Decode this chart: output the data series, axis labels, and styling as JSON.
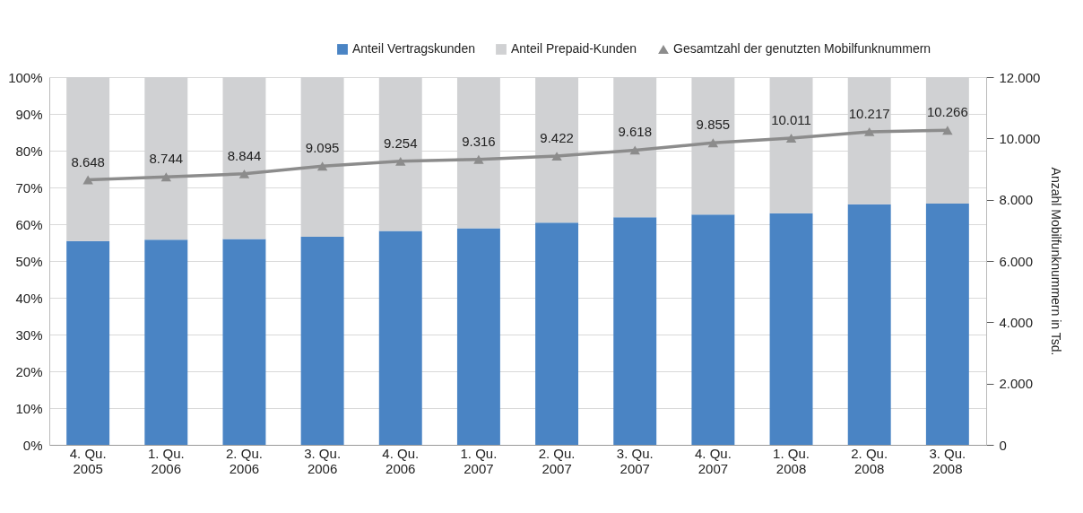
{
  "chart_data": {
    "type": "bar",
    "stacked": true,
    "categories": [
      "4. Qu. 2005",
      "1. Qu. 2006",
      "2. Qu. 2006",
      "3. Qu. 2006",
      "4. Qu. 2006",
      "1. Qu. 2007",
      "2. Qu. 2007",
      "3. Qu. 2007",
      "4. Qu. 2007",
      "1. Qu. 2008",
      "2. Qu. 2008",
      "3. Qu. 2008"
    ],
    "series": [
      {
        "name": "Anteil Vertragskunden",
        "color": "#4a84c4",
        "values": [
          55.4,
          55.8,
          56.0,
          56.6,
          58.2,
          58.9,
          60.4,
          61.9,
          62.6,
          63.0,
          65.4,
          65.6
        ]
      },
      {
        "name": "Anteil Prepaid-Kunden",
        "color": "#d0d1d3",
        "values": [
          44.6,
          44.2,
          44.0,
          43.4,
          41.8,
          41.1,
          39.6,
          38.1,
          37.4,
          37.0,
          34.6,
          34.4
        ]
      },
      {
        "name": "Gesamtzahl der genutzten Mobilfunknummern",
        "type": "line",
        "axis": "y2",
        "color": "#8c8c8c",
        "marker": "triangle",
        "values": [
          8648,
          8744,
          8844,
          9095,
          9254,
          9316,
          9422,
          9618,
          9855,
          10011,
          10217,
          10266
        ],
        "value_labels": [
          "8.648",
          "8.744",
          "8.844",
          "9.095",
          "9.254",
          "9.316",
          "9.422",
          "9.618",
          "9.855",
          "10.011",
          "10.217",
          "10.266"
        ]
      }
    ],
    "ylim": [
      0,
      100
    ],
    "yticks": [
      {
        "value": 0,
        "label": "0%"
      },
      {
        "value": 10,
        "label": "10%"
      },
      {
        "value": 20,
        "label": "20%"
      },
      {
        "value": 30,
        "label": "30%"
      },
      {
        "value": 40,
        "label": "40%"
      },
      {
        "value": 50,
        "label": "50%"
      },
      {
        "value": 60,
        "label": "60%"
      },
      {
        "value": 70,
        "label": "70%"
      },
      {
        "value": 80,
        "label": "80%"
      },
      {
        "value": 90,
        "label": "90%"
      },
      {
        "value": 100,
        "label": "100%"
      }
    ],
    "y2lim": [
      0,
      12000
    ],
    "y2ticks": [
      0,
      {
        "value": 2000,
        "label": "2.000"
      },
      {
        "value": 4000,
        "label": "4.000"
      },
      {
        "value": 6000,
        "label": "6.000"
      },
      {
        "value": 8000,
        "label": "8.000"
      },
      {
        "value": 10000,
        "label": "10.000"
      },
      {
        "value": 12000,
        "label": "12.000"
      }
    ],
    "y2label": "Anzahl Mobilfunknummern in Tsd.",
    "grid": "y",
    "legend": "top right"
  }
}
